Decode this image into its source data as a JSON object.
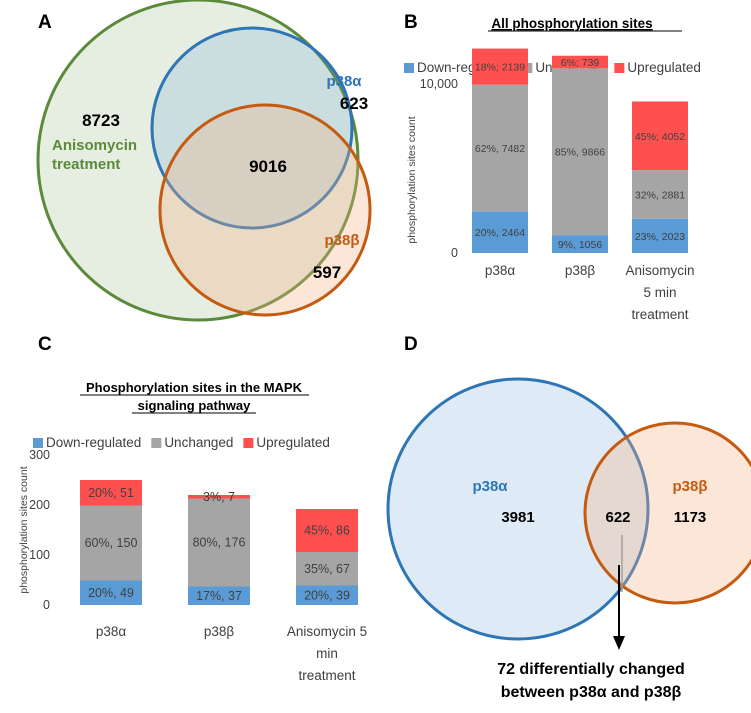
{
  "panels": {
    "A": {
      "letter": "A",
      "region": "8723",
      "p38a_label": "p38α",
      "p38a_only": "623",
      "center": "9016",
      "treatment_line1": "Anisomycin",
      "treatment_line2": "treatment",
      "p38b_label": "p38β",
      "p38b_only": "597",
      "colors": {
        "green": "#5a8a3a",
        "blue": "#2e75b6",
        "orange": "#c55a11"
      }
    },
    "B": {
      "letter": "B"
    },
    "C": {
      "letter": "C"
    },
    "D": {
      "letter": "D",
      "p38a_label": "p38α",
      "p38a_only": "3981",
      "overlap": "622",
      "p38b_label": "p38β",
      "p38b_only": "1173",
      "note_line1": "72 differentially changed",
      "note_line2": "between p38α and p38β"
    }
  },
  "chart_data": [
    {
      "panel": "B",
      "type": "bar",
      "stacked": true,
      "title": "All phosphorylation sites",
      "ylabel": "phosphorylation sites count",
      "categories": [
        "p38α",
        "p38β",
        "Anisomycin\n5 min\ntreatment"
      ],
      "yticks": [
        "0",
        "10,000"
      ],
      "ylim": [
        0,
        12000
      ],
      "legend_position": "top",
      "series": [
        {
          "name": "Down-regulated",
          "color": "#5b9bd5",
          "values": [
            2464,
            1056,
            2023
          ],
          "labels": [
            "20%, 2464",
            "9%, 1056",
            "23%, 2023"
          ]
        },
        {
          "name": "Unchanged",
          "color": "#a5a5a5",
          "values": [
            7482,
            9866,
            2881
          ],
          "labels": [
            "62%, 7482",
            "85%, 9866",
            "32%, 2881"
          ]
        },
        {
          "name": "Upregulated",
          "color": "#ff5050",
          "values": [
            2139,
            739,
            4052
          ],
          "labels": [
            "18%; 2139",
            "6%; 739",
            "45%; 4052"
          ]
        }
      ]
    },
    {
      "panel": "C",
      "type": "bar",
      "stacked": true,
      "title": "Phosphorylation sites in the MAPK\nsignaling pathway",
      "ylabel": "phosphorylation sites count",
      "categories": [
        "p38α",
        "p38β",
        "Anisomycin 5\nmin\ntreatment"
      ],
      "yticks": [
        "0",
        "100",
        "200",
        "300"
      ],
      "ylim": [
        0,
        300
      ],
      "legend_position": "top",
      "series": [
        {
          "name": "Down-regulated",
          "color": "#5b9bd5",
          "values": [
            49,
            37,
            39
          ],
          "labels": [
            "20%, 49",
            "17%, 37",
            "20%, 39"
          ]
        },
        {
          "name": "Unchanged",
          "color": "#a5a5a5",
          "values": [
            150,
            176,
            67
          ],
          "labels": [
            "60%, 150",
            "80%, 176",
            "35%, 67"
          ]
        },
        {
          "name": "Upregulated",
          "color": "#ff5050",
          "values": [
            51,
            7,
            86
          ],
          "labels": [
            "20%, 51",
            "3%, 7",
            "45%, 86"
          ]
        }
      ]
    }
  ]
}
